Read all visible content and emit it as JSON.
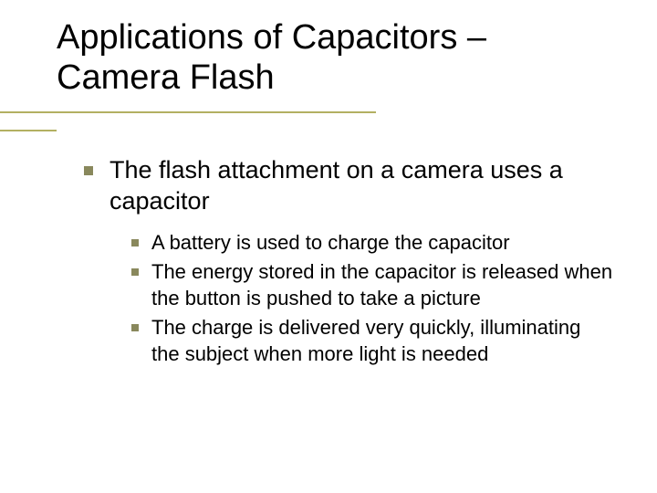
{
  "colors": {
    "background": "#ffffff",
    "text": "#000000",
    "accent_line": "#b3b062",
    "bullet": "#89885c"
  },
  "typography": {
    "title_fontsize": 38,
    "level1_fontsize": 27,
    "level2_fontsize": 22,
    "font_family": "Verdana"
  },
  "title": "Applications of Capacitors – Camera Flash",
  "content": {
    "level1": {
      "text": "The flash attachment on a camera uses a capacitor",
      "children": [
        "A battery is used to charge the capacitor",
        "The energy stored in the capacitor is released when the button is pushed to take a picture",
        "The charge is delivered very quickly, illuminating the subject when more light is needed"
      ]
    }
  }
}
